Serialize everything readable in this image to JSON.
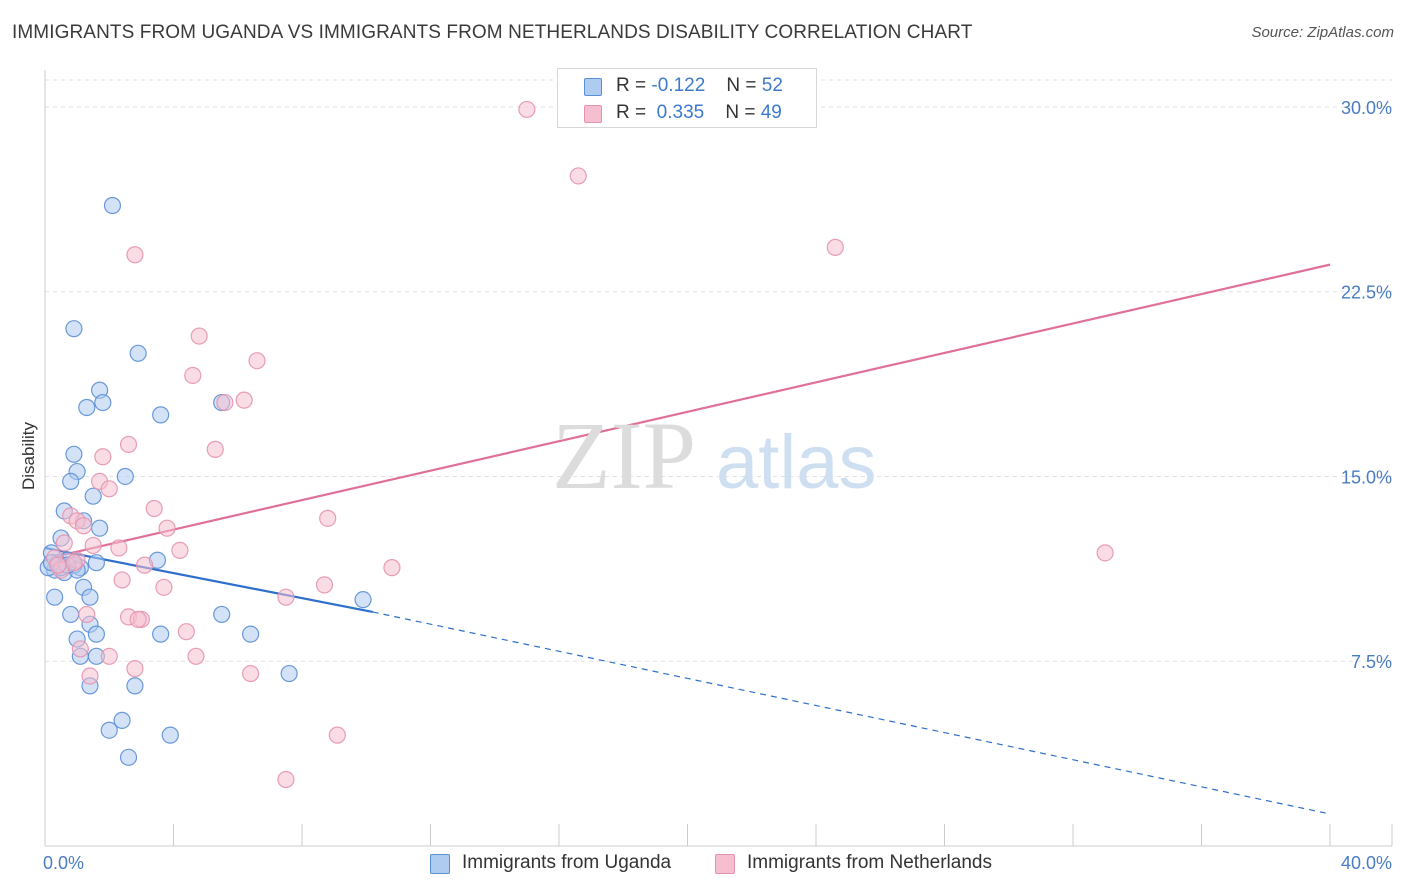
{
  "title": "IMMIGRANTS FROM UGANDA VS IMMIGRANTS FROM NETHERLANDS DISABILITY CORRELATION CHART",
  "source": "Source: ZipAtlas.com",
  "watermark": {
    "zip": "ZIP",
    "atlas": "atlas"
  },
  "colors": {
    "blue_fill": "#aecbf0",
    "blue_stroke": "#5b8fd6",
    "blue_line": "#2e6fcc",
    "pink_fill": "#f6bfd0",
    "pink_stroke": "#e493af",
    "pink_line": "#e0709a",
    "grid": "#e2e2e2",
    "axis_text": "#4a7cc4"
  },
  "legend_top": {
    "rows": [
      {
        "r_label": "R =",
        "r_value": "-0.122",
        "n_label": "N =",
        "n_value": "52"
      },
      {
        "r_label": "R =",
        "r_value": "0.335",
        "n_label": "N =",
        "n_value": "49"
      }
    ]
  },
  "chart_data": {
    "type": "scatter",
    "title": "IMMIGRANTS FROM UGANDA VS IMMIGRANTS FROM NETHERLANDS DISABILITY CORRELATION CHART",
    "xlabel": "",
    "ylabel": "Disability",
    "xlim": [
      0,
      40
    ],
    "ylim": [
      0,
      31.5
    ],
    "x_tick_labels": [
      "0.0%",
      "40.0%"
    ],
    "y_ticks": [
      7.5,
      15.0,
      22.5,
      30.0
    ],
    "y_tick_labels": [
      "7.5%",
      "15.0%",
      "22.5%",
      "30.0%"
    ],
    "grid": true,
    "series": [
      {
        "name": "Immigrants from Uganda",
        "color": "blue",
        "points": [
          [
            2.1,
            26.0
          ],
          [
            0.9,
            21.0
          ],
          [
            2.9,
            20.0
          ],
          [
            1.7,
            18.5
          ],
          [
            1.3,
            17.8
          ],
          [
            1.8,
            18.0
          ],
          [
            3.6,
            17.5
          ],
          [
            5.5,
            18.0
          ],
          [
            0.9,
            15.9
          ],
          [
            1.0,
            15.2
          ],
          [
            0.8,
            14.8
          ],
          [
            2.5,
            15.0
          ],
          [
            1.5,
            14.2
          ],
          [
            0.6,
            13.6
          ],
          [
            1.2,
            13.2
          ],
          [
            1.7,
            12.9
          ],
          [
            0.5,
            12.5
          ],
          [
            0.2,
            11.9
          ],
          [
            0.4,
            11.4
          ],
          [
            0.7,
            11.6
          ],
          [
            1.1,
            11.3
          ],
          [
            0.3,
            11.2
          ],
          [
            0.6,
            11.1
          ],
          [
            1.6,
            11.5
          ],
          [
            3.5,
            11.6
          ],
          [
            0.1,
            11.3
          ],
          [
            0.9,
            11.4
          ],
          [
            0.4,
            11.5
          ],
          [
            1.2,
            10.5
          ],
          [
            1.4,
            10.1
          ],
          [
            0.3,
            10.1
          ],
          [
            9.9,
            10.0
          ],
          [
            0.8,
            9.4
          ],
          [
            1.4,
            9.0
          ],
          [
            5.5,
            9.4
          ],
          [
            1.6,
            8.6
          ],
          [
            1.0,
            8.4
          ],
          [
            3.6,
            8.6
          ],
          [
            6.4,
            8.6
          ],
          [
            1.1,
            7.7
          ],
          [
            1.6,
            7.7
          ],
          [
            7.6,
            7.0
          ],
          [
            1.4,
            6.5
          ],
          [
            2.8,
            6.5
          ],
          [
            2.4,
            5.1
          ],
          [
            2.0,
            4.7
          ],
          [
            3.9,
            4.5
          ],
          [
            2.6,
            3.6
          ],
          [
            0.5,
            11.3
          ],
          [
            0.2,
            11.5
          ],
          [
            1.0,
            11.2
          ],
          [
            0.7,
            11.4
          ]
        ]
      },
      {
        "name": "Immigrants from Netherlands",
        "color": "pink",
        "points": [
          [
            15.0,
            29.9
          ],
          [
            16.6,
            27.2
          ],
          [
            24.6,
            24.3
          ],
          [
            2.8,
            24.0
          ],
          [
            4.8,
            20.7
          ],
          [
            6.6,
            19.7
          ],
          [
            4.6,
            19.1
          ],
          [
            6.2,
            18.1
          ],
          [
            5.6,
            18.0
          ],
          [
            2.6,
            16.3
          ],
          [
            5.3,
            16.1
          ],
          [
            1.8,
            15.8
          ],
          [
            1.7,
            14.8
          ],
          [
            2.0,
            14.5
          ],
          [
            3.4,
            13.7
          ],
          [
            0.8,
            13.4
          ],
          [
            1.0,
            13.2
          ],
          [
            8.8,
            13.3
          ],
          [
            1.2,
            13.0
          ],
          [
            3.8,
            12.9
          ],
          [
            0.6,
            12.3
          ],
          [
            1.5,
            12.2
          ],
          [
            2.3,
            12.1
          ],
          [
            4.2,
            12.0
          ],
          [
            33.0,
            11.9
          ],
          [
            0.3,
            11.7
          ],
          [
            1.0,
            11.6
          ],
          [
            3.1,
            11.4
          ],
          [
            10.8,
            11.3
          ],
          [
            0.5,
            11.2
          ],
          [
            2.4,
            10.8
          ],
          [
            3.7,
            10.5
          ],
          [
            8.7,
            10.6
          ],
          [
            7.5,
            10.1
          ],
          [
            1.3,
            9.4
          ],
          [
            2.6,
            9.3
          ],
          [
            3.0,
            9.2
          ],
          [
            2.9,
            9.2
          ],
          [
            4.4,
            8.7
          ],
          [
            1.1,
            8.0
          ],
          [
            2.0,
            7.7
          ],
          [
            4.7,
            7.7
          ],
          [
            2.8,
            7.2
          ],
          [
            6.4,
            7.0
          ],
          [
            1.4,
            6.9
          ],
          [
            9.1,
            4.5
          ],
          [
            7.5,
            2.7
          ],
          [
            0.9,
            11.5
          ],
          [
            0.4,
            11.4
          ]
        ]
      }
    ],
    "trend_lines": [
      {
        "series": "Immigrants from Uganda",
        "solid": [
          [
            0,
            12.1
          ],
          [
            10.2,
            9.5
          ]
        ],
        "dashed": [
          [
            10.2,
            9.5
          ],
          [
            40,
            1.3
          ]
        ]
      },
      {
        "series": "Immigrants from Netherlands",
        "solid": [
          [
            0.5,
            11.8
          ],
          [
            40,
            23.6
          ]
        ]
      }
    ]
  },
  "bottom_legend": [
    {
      "label": "Immigrants from Uganda"
    },
    {
      "label": "Immigrants from Netherlands"
    }
  ]
}
